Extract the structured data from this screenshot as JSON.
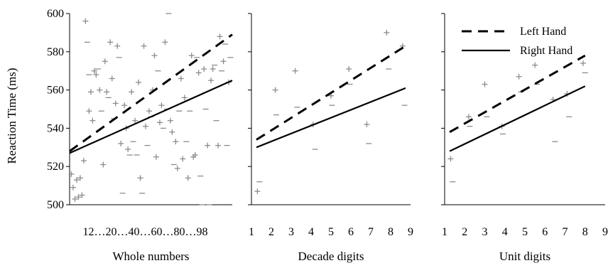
{
  "chart_data": {
    "type": "scatter",
    "ylabel": "Reaction Time  (ms)",
    "ylim": [
      500,
      600
    ],
    "yticks": [
      500,
      520,
      540,
      560,
      580,
      600
    ],
    "legend": {
      "placement": "top-right",
      "entries": [
        {
          "label": "Left Hand",
          "style": "dashed"
        },
        {
          "label": "Right Hand",
          "style": "solid"
        }
      ]
    },
    "panels": [
      {
        "id": "whole",
        "xlabel": "Whole numbers",
        "xlim": [
          11,
          103
        ],
        "xticks": [
          12,
          20,
          40,
          60,
          80,
          98
        ],
        "xtick_labels": [
          "12…20…40…60…80…98"
        ],
        "fits": {
          "left": [
            [
              11,
              528
            ],
            [
              103,
              589
            ]
          ],
          "right": [
            [
              11,
              527
            ],
            [
              103,
              565
            ]
          ]
        },
        "points": [
          [
            12,
            516,
            "+"
          ],
          [
            13,
            509,
            "+"
          ],
          [
            14,
            503,
            "+"
          ],
          [
            15,
            513,
            "+"
          ],
          [
            16,
            504,
            "+"
          ],
          [
            17,
            514,
            "+"
          ],
          [
            18,
            505,
            "+"
          ],
          [
            19,
            523,
            "+"
          ],
          [
            20,
            596,
            "+"
          ],
          [
            21,
            585,
            "-"
          ],
          [
            22,
            549,
            "+"
          ],
          [
            22,
            568,
            "-"
          ],
          [
            23,
            559,
            "+"
          ],
          [
            24,
            544,
            "+"
          ],
          [
            25,
            570,
            "+"
          ],
          [
            26,
            568,
            "+"
          ],
          [
            27,
            571,
            "-"
          ],
          [
            28,
            560,
            "+"
          ],
          [
            29,
            549,
            "-"
          ],
          [
            30,
            521,
            "+"
          ],
          [
            31,
            575,
            "+"
          ],
          [
            32,
            559,
            "+"
          ],
          [
            33,
            556,
            "-"
          ],
          [
            34,
            585,
            "+"
          ],
          [
            35,
            566,
            "+"
          ],
          [
            36,
            545,
            "-"
          ],
          [
            37,
            553,
            "+"
          ],
          [
            38,
            583,
            "+"
          ],
          [
            39,
            577,
            "-"
          ],
          [
            40,
            532,
            "+"
          ],
          [
            41,
            506,
            "-"
          ],
          [
            42,
            552,
            "+"
          ],
          [
            43,
            540,
            "+"
          ],
          [
            44,
            529,
            "+"
          ],
          [
            45,
            526,
            "-"
          ],
          [
            46,
            559,
            "+"
          ],
          [
            47,
            533,
            "-"
          ],
          [
            48,
            544,
            "+"
          ],
          [
            49,
            526,
            "-"
          ],
          [
            50,
            564,
            "+"
          ],
          [
            51,
            514,
            "+"
          ],
          [
            52,
            506,
            "-"
          ],
          [
            53,
            583,
            "+"
          ],
          [
            54,
            541,
            "+"
          ],
          [
            55,
            531,
            "-"
          ],
          [
            56,
            549,
            "+"
          ],
          [
            57,
            546,
            "-"
          ],
          [
            58,
            560,
            "+"
          ],
          [
            59,
            578,
            "+"
          ],
          [
            60,
            525,
            "+"
          ],
          [
            61,
            570,
            "-"
          ],
          [
            62,
            543,
            "+"
          ],
          [
            63,
            552,
            "+"
          ],
          [
            64,
            540,
            "-"
          ],
          [
            65,
            585,
            "+"
          ],
          [
            66,
            550,
            "-"
          ],
          [
            67,
            600,
            "-"
          ],
          [
            68,
            544,
            "+"
          ],
          [
            69,
            538,
            "+"
          ],
          [
            70,
            521,
            "-"
          ],
          [
            71,
            533,
            "+"
          ],
          [
            72,
            519,
            "+"
          ],
          [
            73,
            549,
            "-"
          ],
          [
            74,
            566,
            "+"
          ],
          [
            75,
            524,
            "+"
          ],
          [
            76,
            556,
            "+"
          ],
          [
            77,
            533,
            "-"
          ],
          [
            78,
            514,
            "+"
          ],
          [
            79,
            549,
            "-"
          ],
          [
            80,
            578,
            "+"
          ],
          [
            81,
            525,
            "+"
          ],
          [
            82,
            526,
            "+"
          ],
          [
            83,
            577,
            "-"
          ],
          [
            84,
            569,
            "+"
          ],
          [
            85,
            515,
            "-"
          ],
          [
            86,
            500,
            "-"
          ],
          [
            87,
            571,
            "+"
          ],
          [
            88,
            550,
            "-"
          ],
          [
            89,
            531,
            "+"
          ],
          [
            90,
            500,
            "-"
          ],
          [
            91,
            565,
            "+"
          ],
          [
            92,
            571,
            "+"
          ],
          [
            93,
            573,
            "-"
          ],
          [
            94,
            544,
            "-"
          ],
          [
            95,
            531,
            "+"
          ],
          [
            96,
            588,
            "+"
          ],
          [
            97,
            570,
            "-"
          ],
          [
            98,
            575,
            "+"
          ],
          [
            99,
            584,
            "-"
          ],
          [
            100,
            531,
            "-"
          ],
          [
            101,
            564,
            "+"
          ],
          [
            102,
            577,
            "-"
          ]
        ]
      },
      {
        "id": "decade",
        "xlabel": "Decade digits",
        "xlim": [
          1,
          9
        ],
        "xticks": [
          1,
          2,
          3,
          4,
          5,
          6,
          7,
          8,
          9
        ],
        "xtick_labels": [
          "1",
          "2",
          "3",
          "4",
          "5",
          "6",
          "7",
          "8",
          "9"
        ],
        "fits": {
          "left": [
            [
              1.25,
              534
            ],
            [
              8.75,
              583
            ]
          ],
          "right": [
            [
              1.25,
              530
            ],
            [
              8.75,
              561
            ]
          ]
        },
        "points": [
          [
            1.3,
            507,
            "+"
          ],
          [
            1.4,
            512,
            "-"
          ],
          [
            2.2,
            560,
            "+"
          ],
          [
            2.25,
            547,
            "-"
          ],
          [
            3.2,
            570,
            "+"
          ],
          [
            3.3,
            551,
            "-"
          ],
          [
            4.1,
            542,
            "+"
          ],
          [
            4.2,
            529,
            "-"
          ],
          [
            5.0,
            557,
            "+"
          ],
          [
            5.05,
            552,
            "-"
          ],
          [
            5.9,
            571,
            "+"
          ],
          [
            5.95,
            563,
            "-"
          ],
          [
            6.8,
            542,
            "+"
          ],
          [
            6.9,
            532,
            "-"
          ],
          [
            7.8,
            590,
            "+"
          ],
          [
            7.9,
            571,
            "-"
          ],
          [
            8.6,
            583,
            "+"
          ],
          [
            8.7,
            552,
            "-"
          ]
        ]
      },
      {
        "id": "unit",
        "xlabel": "Unit digits",
        "xlim": [
          1,
          9
        ],
        "xticks": [
          1,
          2,
          3,
          4,
          5,
          6,
          7,
          8,
          9
        ],
        "xtick_labels": [
          "1",
          "2",
          "3",
          "4",
          "5",
          "6",
          "7",
          "8",
          "9"
        ],
        "fits": {
          "left": [
            [
              1.25,
              538
            ],
            [
              8.0,
              578
            ]
          ],
          "right": [
            [
              1.25,
              528
            ],
            [
              8.0,
              562
            ]
          ]
        },
        "points": [
          [
            1.3,
            524,
            "+"
          ],
          [
            1.4,
            512,
            "-"
          ],
          [
            2.2,
            546,
            "+"
          ],
          [
            2.25,
            541,
            "-"
          ],
          [
            3.0,
            563,
            "+"
          ],
          [
            3.1,
            546,
            "-"
          ],
          [
            3.85,
            541,
            "+"
          ],
          [
            3.9,
            537,
            "-"
          ],
          [
            4.7,
            567,
            "+"
          ],
          [
            4.8,
            559,
            "-"
          ],
          [
            5.5,
            573,
            "+"
          ],
          [
            5.6,
            563,
            "-"
          ],
          [
            6.4,
            555,
            "+"
          ],
          [
            6.5,
            533,
            "-"
          ],
          [
            7.1,
            558,
            "+"
          ],
          [
            7.2,
            546,
            "-"
          ],
          [
            7.9,
            574,
            "+"
          ],
          [
            8.0,
            569,
            "-"
          ]
        ]
      }
    ]
  }
}
